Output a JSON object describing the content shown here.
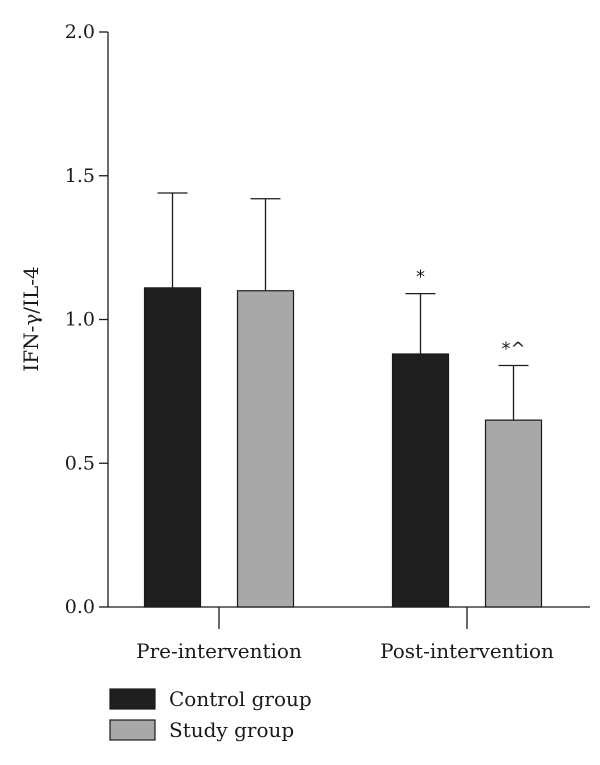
{
  "chart_data": {
    "type": "bar",
    "ylabel": "IFN-γ/IL-4",
    "xlabel": "",
    "title": "",
    "ylim": [
      0,
      2.0
    ],
    "yticks": [
      0.0,
      0.5,
      1.0,
      1.5,
      2.0
    ],
    "ytick_labels": [
      "0.0",
      "0.5",
      "1.0",
      "1.5",
      "2.0"
    ],
    "categories": [
      "Pre-intervention",
      "Post-intervention"
    ],
    "series": [
      {
        "name": "Control group",
        "color": "#1f1f1f",
        "values": [
          1.11,
          0.88
        ],
        "errors": [
          0.33,
          0.21
        ],
        "annotations": [
          "",
          "*"
        ]
      },
      {
        "name": "Study group",
        "color": "#a8a8a8",
        "values": [
          1.1,
          0.65
        ],
        "errors": [
          0.32,
          0.19
        ],
        "annotations": [
          "",
          "*^"
        ]
      }
    ],
    "error_bars": "upper",
    "legend_position": "bottom-left",
    "grid": false
  }
}
